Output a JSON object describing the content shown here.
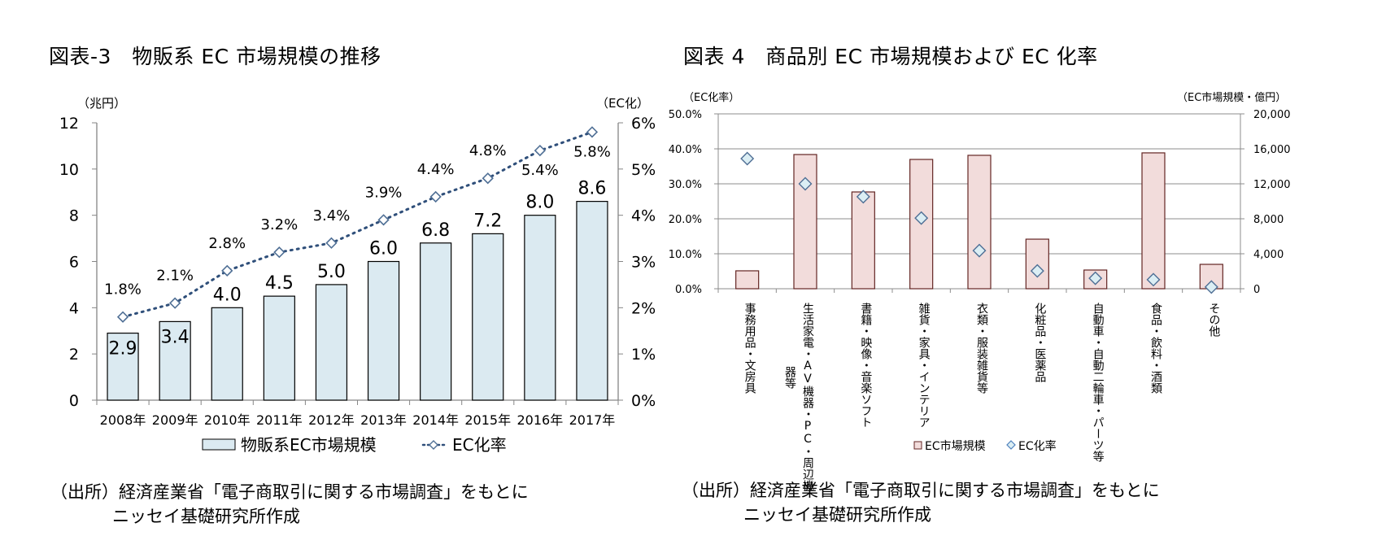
{
  "left": {
    "title": "図表-3　物販系 EC 市場規模の推移",
    "source_line1": "（出所）経済産業省「電子商取引に関する市場調査」をもとに",
    "source_line2": "ニッセイ基礎研究所作成"
  },
  "right": {
    "title": "図表 4　商品別 EC 市場規模および EC 化率",
    "source_line1": "（出所）経済産業省「電子商取引に関する市場調査」をもとに",
    "source_line2": "ニッセイ基礎研究所作成"
  },
  "chart_data": [
    {
      "type": "bar",
      "title": "図表-3　物販系 EC 市場規模の推移",
      "ylabel": "（兆円）",
      "y2label": "（EC化）",
      "categories": [
        "2008年",
        "2009年",
        "2010年",
        "2011年",
        "2012年",
        "2013年",
        "2014年",
        "2015年",
        "2016年",
        "2017年"
      ],
      "ylim": [
        0,
        12
      ],
      "yticks": [
        0,
        2,
        4,
        6,
        8,
        10,
        12
      ],
      "y2lim": [
        0,
        6
      ],
      "y2ticks": [
        "0%",
        "1%",
        "2%",
        "3%",
        "4%",
        "5%",
        "6%"
      ],
      "grid": false,
      "legend_position": "bottom",
      "series": [
        {
          "name": "物販系EC市場規模",
          "type": "bar",
          "axis": "left",
          "color": "#dbeaf1",
          "values": [
            2.9,
            3.4,
            4.0,
            4.5,
            5.0,
            6.0,
            6.8,
            7.2,
            8.0,
            8.6
          ],
          "labels": [
            "2.9",
            "3.4",
            "4.0",
            "4.5",
            "5.0",
            "6.0",
            "6.8",
            "7.2",
            "8.0",
            "8.6"
          ]
        },
        {
          "name": "EC化率",
          "type": "line",
          "axis": "right",
          "color": "#2f4f7a",
          "marker": "diamond",
          "values": [
            1.8,
            2.1,
            2.8,
            3.2,
            3.4,
            3.9,
            4.4,
            4.8,
            5.4,
            5.8
          ],
          "labels": [
            "1.8%",
            "2.1%",
            "2.8%",
            "3.2%",
            "3.4%",
            "3.9%",
            "4.4%",
            "4.8%",
            "5.4%",
            "5.8%"
          ]
        }
      ]
    },
    {
      "type": "bar",
      "title": "図表 4　商品別 EC 市場規模および EC 化率",
      "ylabel": "（EC化率）",
      "y2label": "（EC市場規模・億円）",
      "categories": [
        "事務用品・文房具",
        "生活家電・AV機器・PC・周辺機器等",
        "書籍・映像・音楽ソフト",
        "雑貨・家具・インテリア",
        "衣類・服装雑貨等",
        "化粧品・医薬品",
        "自動車・自動二輪車・パーツ等",
        "食品・飲料・酒類",
        "その他"
      ],
      "category_lines": [
        [
          "事務用品・文房具"
        ],
        [
          "生活家電・AV機器・PC・周辺機",
          "器等"
        ],
        [
          "書籍・映像・音楽ソフト"
        ],
        [
          "雑貨・家具・インテリア"
        ],
        [
          "衣類・服装雑貨等"
        ],
        [
          "化粧品・医薬品"
        ],
        [
          "自動車・自動二輪車・パーツ等"
        ],
        [
          "食品・飲料・酒類"
        ],
        [
          "その他"
        ]
      ],
      "ylim": [
        0,
        50
      ],
      "yticks": [
        "0.0%",
        "10.0%",
        "20.0%",
        "30.0%",
        "40.0%",
        "50.0%"
      ],
      "y2lim": [
        0,
        20000
      ],
      "y2ticks": [
        "0",
        "4,000",
        "8,000",
        "12,000",
        "16,000",
        "20,000"
      ],
      "grid": true,
      "legend_position": "bottom",
      "series": [
        {
          "name": "EC市場規模",
          "type": "bar",
          "axis": "right",
          "color": "#f2dcdb",
          "values": [
            2050,
            15350,
            11070,
            14790,
            15260,
            5670,
            2140,
            15540,
            2790
          ]
        },
        {
          "name": "EC化率",
          "type": "scatter",
          "axis": "left",
          "color": "#4f81bd",
          "marker": "diamond",
          "values": [
            37.2,
            30.0,
            26.3,
            20.2,
            10.9,
            5.1,
            3.0,
            2.6,
            0.5
          ]
        }
      ]
    }
  ]
}
